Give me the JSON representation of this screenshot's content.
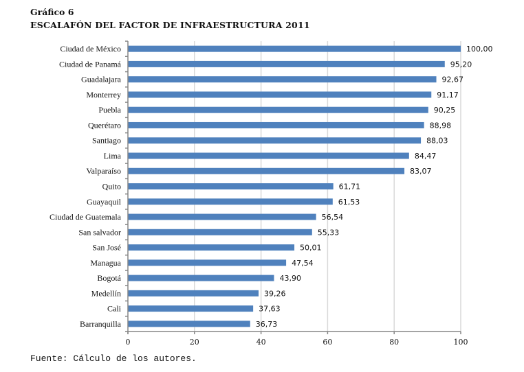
{
  "figure": {
    "number": "Gráfico 6",
    "title": "ESCALAFÓN DEL FACTOR DE INFRAESTRUCTURA 2011",
    "source": "Fuente: Cálculo de los autores."
  },
  "colors": {
    "bar": "#4f81bd",
    "grid": "#d9d9d9",
    "axis": "#868686",
    "text": "#111111"
  },
  "chart_data": {
    "type": "bar",
    "orientation": "horizontal",
    "title": "ESCALAFÓN DEL FACTOR DE INFRAESTRUCTURA 2011",
    "xlabel": "",
    "ylabel": "",
    "categories": [
      "Ciudad de México",
      "Ciudad de Panamá",
      "Guadalajara",
      "Monterrey",
      "Puebla",
      "Querétaro",
      "Santiago",
      "Lima",
      "Valparaíso",
      "Quito",
      "Guayaquil",
      "Ciudad de Guatemala",
      "San salvador",
      "San José",
      "Managua",
      "Bogotá",
      "Medellín",
      "Cali",
      "Barranquilla"
    ],
    "values": [
      100.0,
      95.2,
      92.67,
      91.17,
      90.25,
      88.98,
      88.03,
      84.47,
      83.07,
      61.71,
      61.53,
      56.54,
      55.33,
      50.01,
      47.54,
      43.9,
      39.26,
      37.63,
      36.73
    ],
    "value_labels": [
      "100,00",
      "95,20",
      "92,67",
      "91,17",
      "90,25",
      "88,98",
      "88,03",
      "84,47",
      "83,07",
      "61,71",
      "61,53",
      "56,54",
      "55,33",
      "50,01",
      "47,54",
      "43,90",
      "39,26",
      "37,63",
      "36,73"
    ],
    "xlim": [
      0,
      100
    ],
    "xticks": [
      0,
      20,
      40,
      60,
      80,
      100
    ],
    "xtick_labels": [
      "0",
      "20",
      "40",
      "60",
      "80",
      "100"
    ],
    "grid": "vertical",
    "legend": "none"
  }
}
